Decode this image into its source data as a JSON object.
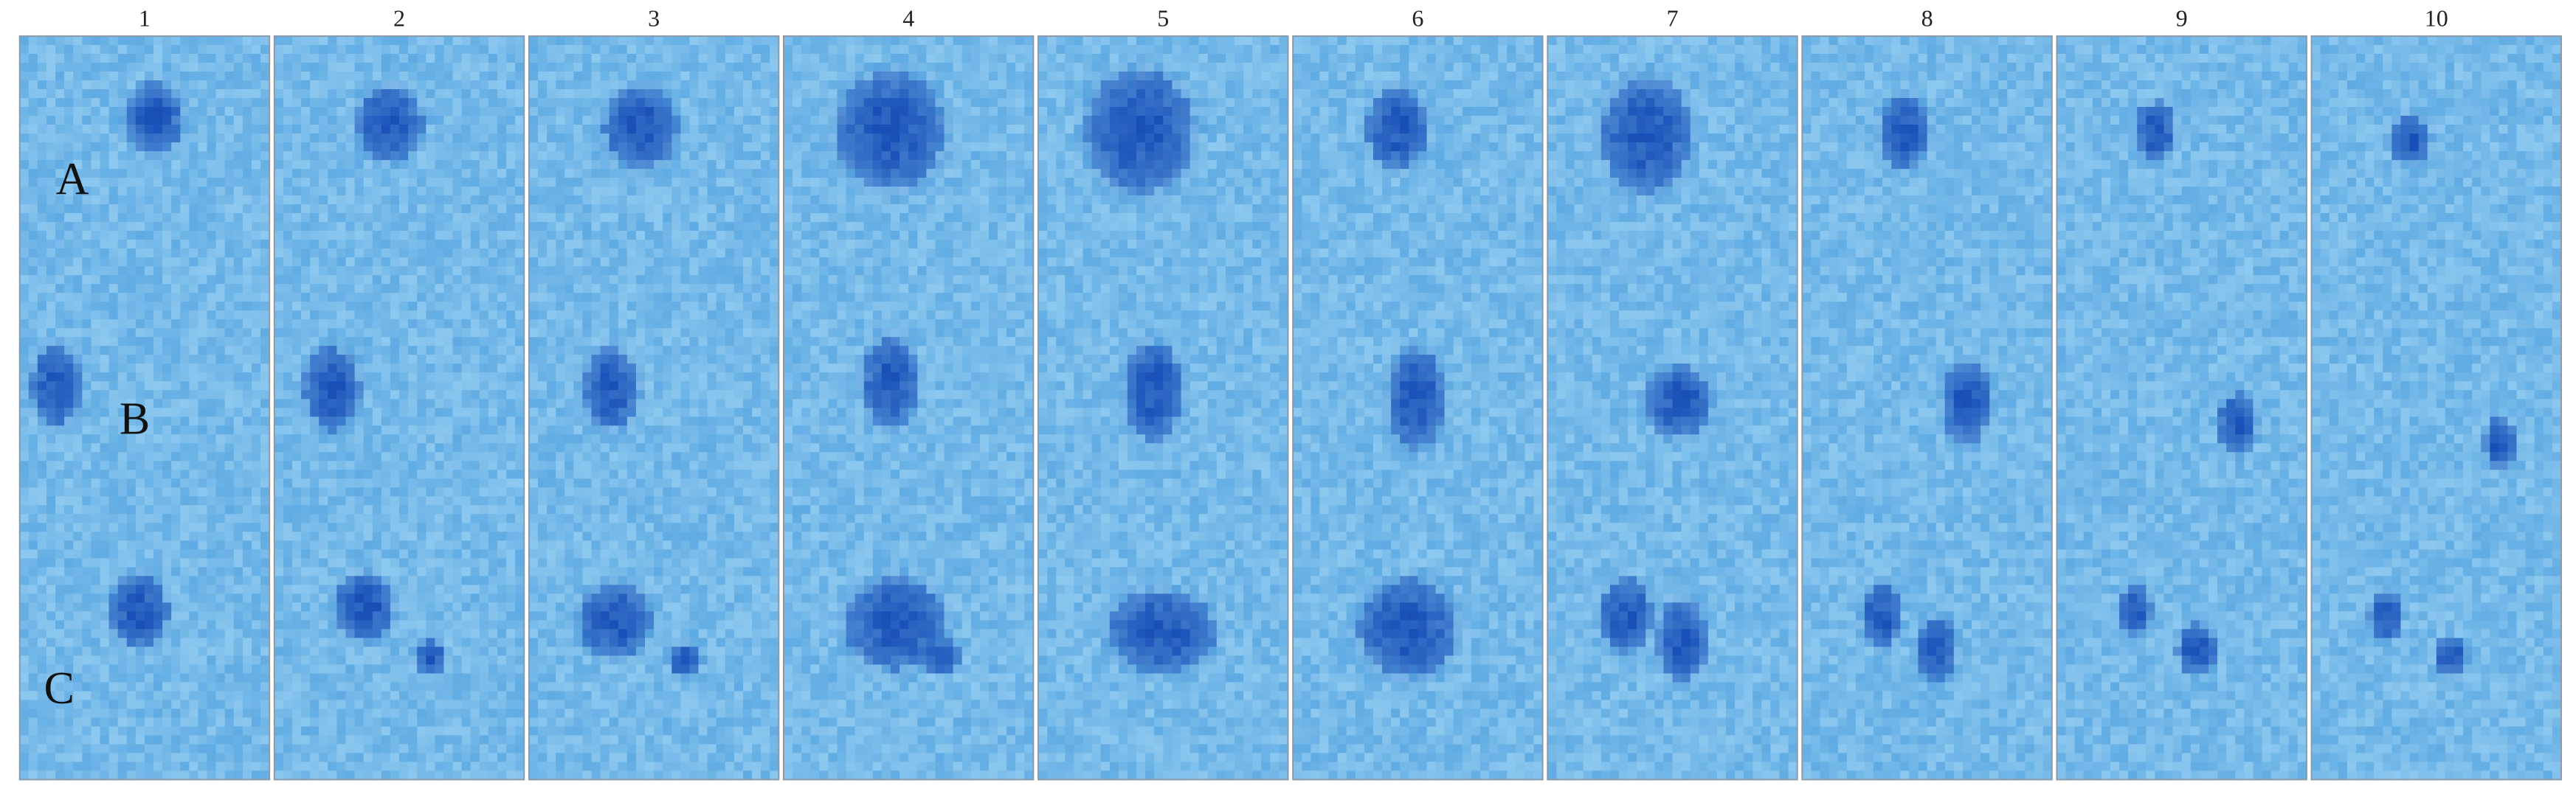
{
  "panels": [
    {
      "label": "1"
    },
    {
      "label": "2"
    },
    {
      "label": "3"
    },
    {
      "label": "4"
    },
    {
      "label": "5"
    },
    {
      "label": "6"
    },
    {
      "label": "7"
    },
    {
      "label": "8"
    },
    {
      "label": "9"
    },
    {
      "label": "10"
    }
  ],
  "rows": [
    {
      "label": "A"
    },
    {
      "label": "B"
    },
    {
      "label": "C"
    }
  ]
}
